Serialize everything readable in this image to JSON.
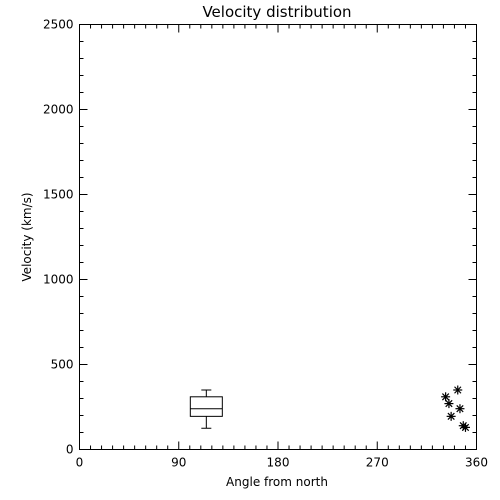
{
  "chart_data": {
    "type": "scatter",
    "title": "Velocity distribution",
    "xlabel": "Angle from north",
    "ylabel": "Velocity (km/s)",
    "xlim": [
      0,
      360
    ],
    "ylim": [
      0,
      2500
    ],
    "xticks": [
      0,
      90,
      180,
      270,
      360
    ],
    "yticks": [
      0,
      500,
      1000,
      1500,
      2000,
      2500
    ],
    "x_minor_step": 10,
    "y_minor_step": 100,
    "grid": false,
    "boxplot": {
      "x": 115,
      "whisker_low": 125,
      "q1": 195,
      "median": 240,
      "q3": 310,
      "whisker_high": 350
    },
    "points": [
      {
        "x": 332,
        "y": 310
      },
      {
        "x": 335,
        "y": 270
      },
      {
        "x": 337,
        "y": 195
      },
      {
        "x": 343,
        "y": 350
      },
      {
        "x": 345,
        "y": 240
      },
      {
        "x": 348,
        "y": 140
      },
      {
        "x": 350,
        "y": 130
      }
    ]
  }
}
